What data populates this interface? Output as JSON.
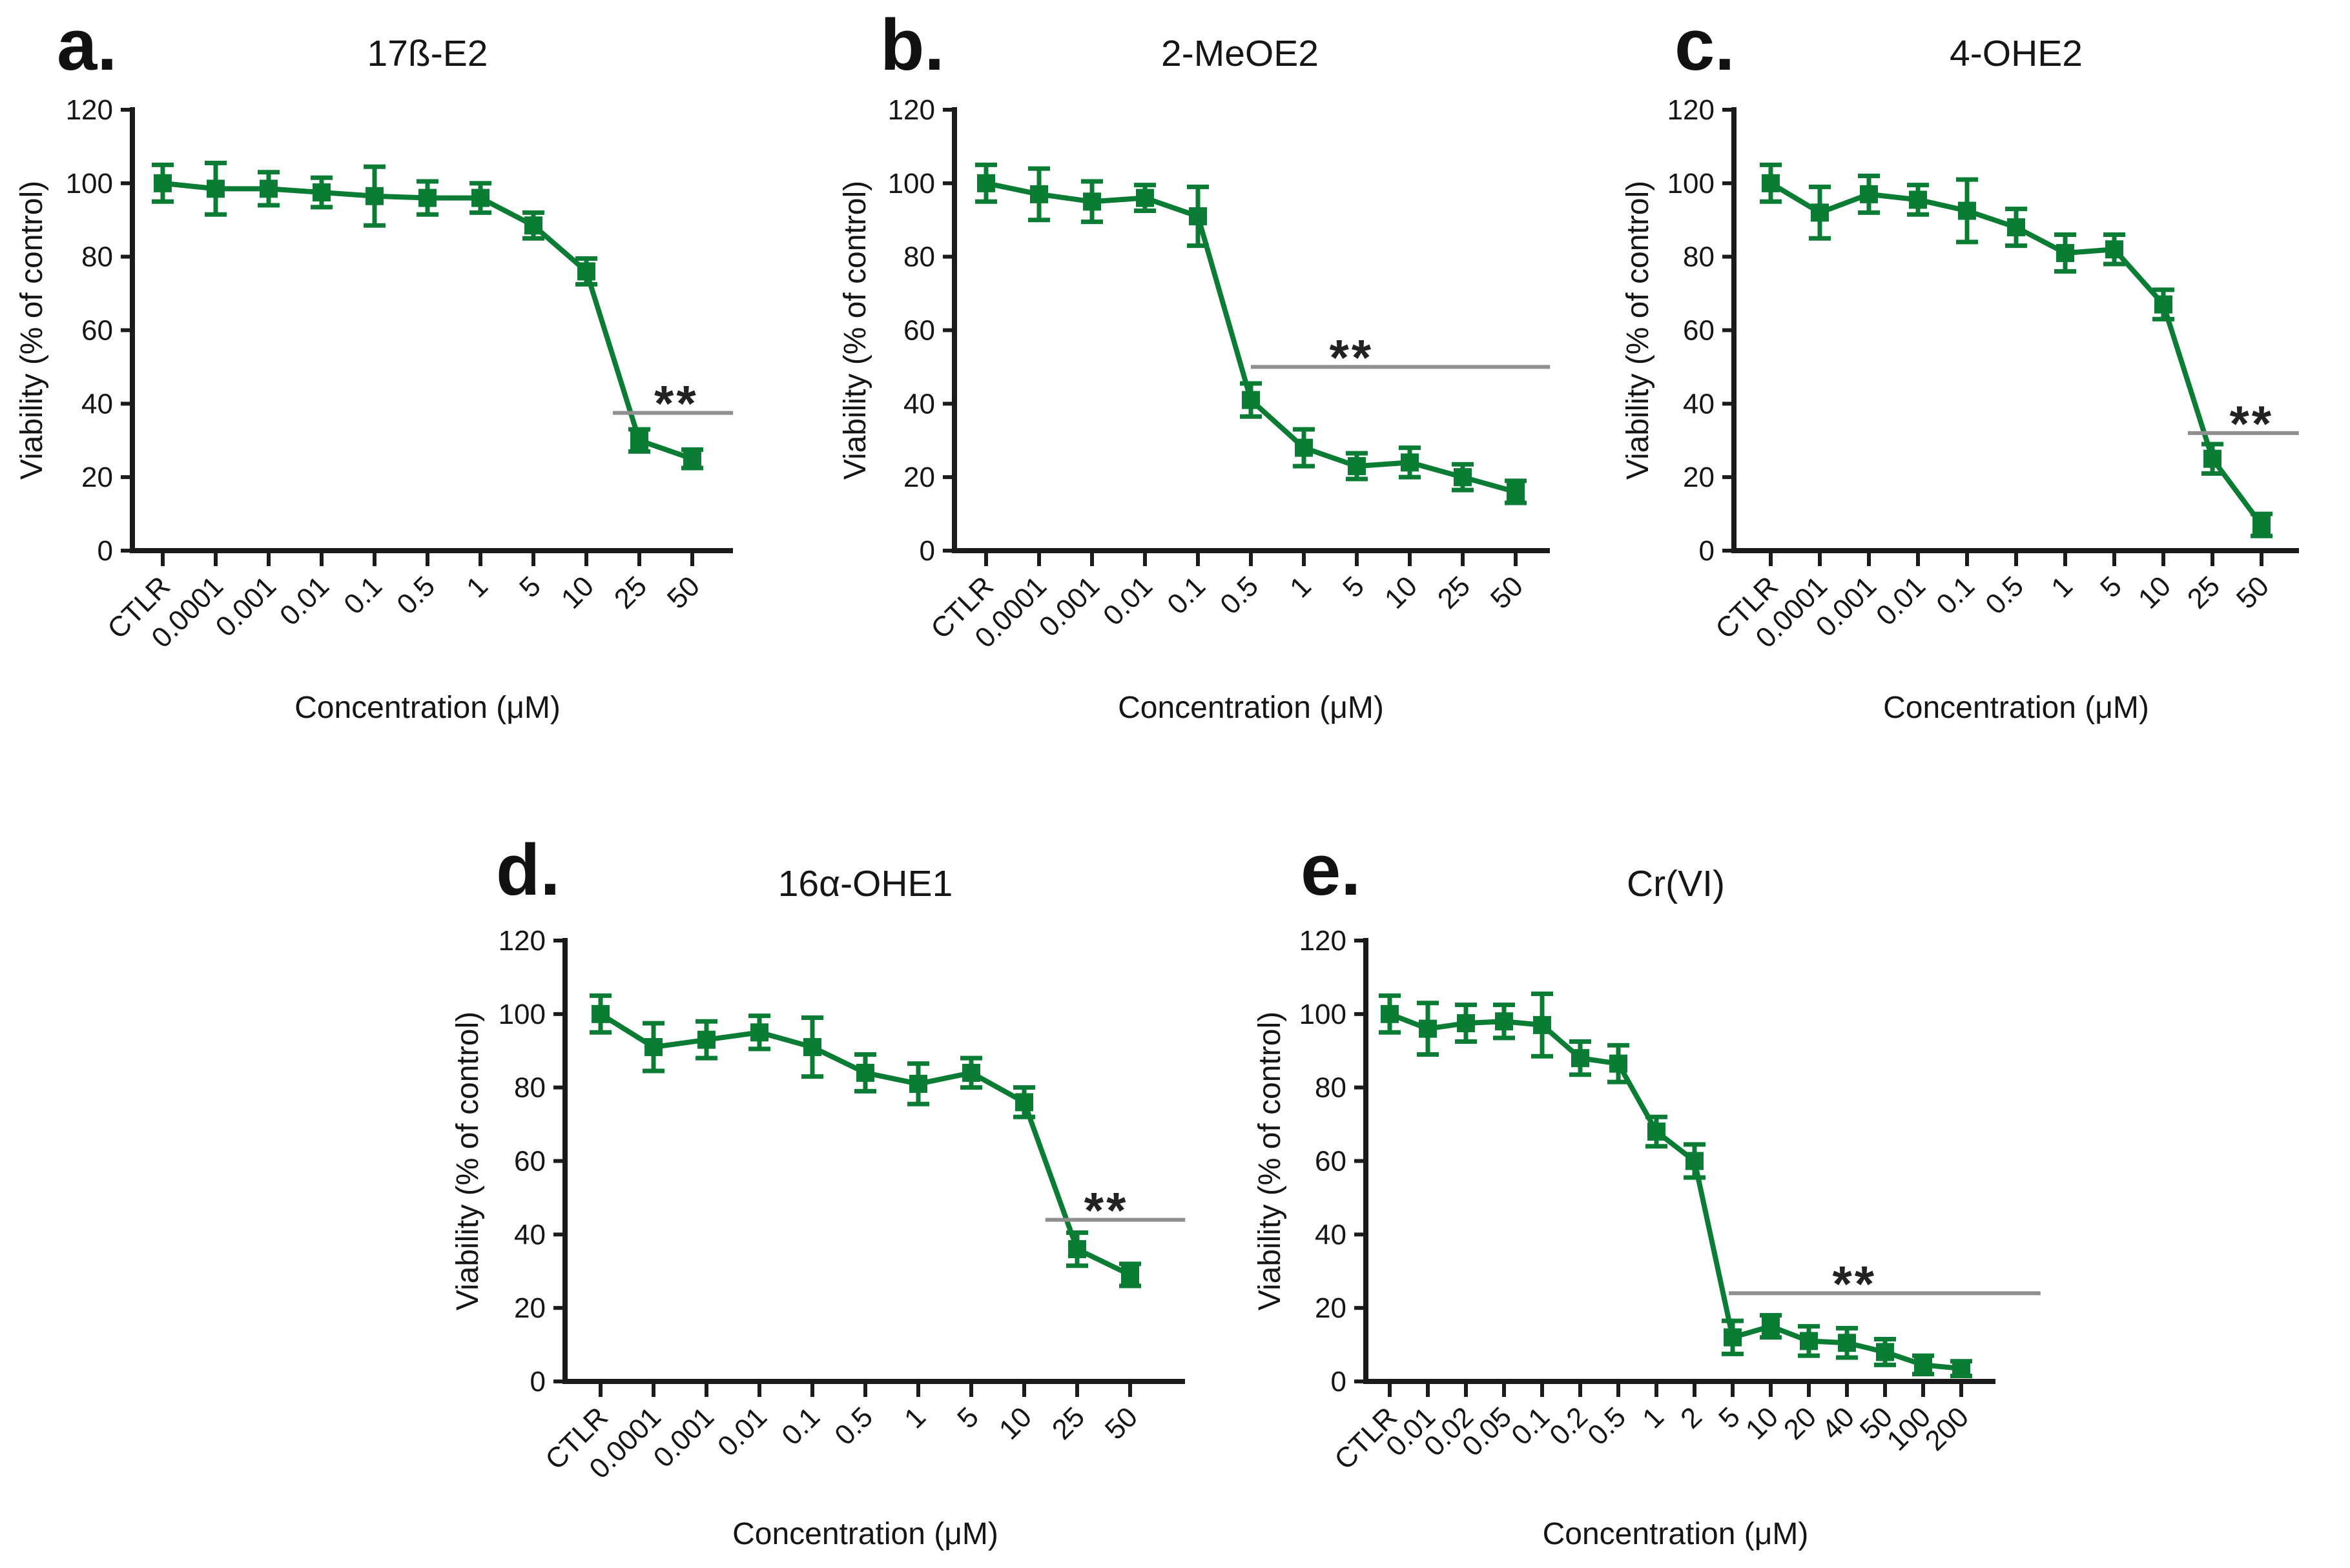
{
  "figure": {
    "background": "#ffffff",
    "series_color": "#0b7c33",
    "sig_line_color": "#8f8f8f",
    "axis_color": "#1b1b1b",
    "text_color": "#151515",
    "star_color": "#222222"
  },
  "chart_data": [
    {
      "panel": "a",
      "panel_letter": "a.",
      "type": "line",
      "title": "17ß-E2",
      "xlabel": "Concentration (μM)",
      "ylabel": "Viability (% of control)",
      "ylim": [
        0,
        120
      ],
      "yticks": [
        0,
        20,
        40,
        60,
        80,
        100,
        120
      ],
      "grid": false,
      "legend": null,
      "marker": "square",
      "categories": [
        "CTLR",
        "0.0001",
        "0.001",
        "0.01",
        "0.1",
        "0.5",
        "1",
        "5",
        "10",
        "25",
        "50"
      ],
      "values": [
        100,
        98.5,
        98.5,
        97.5,
        96.5,
        96,
        96,
        88.5,
        76,
        30,
        25
      ],
      "errors": [
        5,
        7,
        4.5,
        4,
        8,
        4.5,
        4,
        3.5,
        3.5,
        3,
        2.5
      ],
      "significance": {
        "label": "**",
        "y": 37.5,
        "from_index": 8.5,
        "to_index": 10.77,
        "star_index": 9.7
      }
    },
    {
      "panel": "b",
      "panel_letter": "b.",
      "type": "line",
      "title": "2-MeOE2",
      "xlabel": "Concentration (μM)",
      "ylabel": "Viability (% of control)",
      "ylim": [
        0,
        120
      ],
      "yticks": [
        0,
        20,
        40,
        60,
        80,
        100,
        120
      ],
      "grid": false,
      "legend": null,
      "marker": "square",
      "categories": [
        "CTLR",
        "0.0001",
        "0.001",
        "0.01",
        "0.1",
        "0.5",
        "1",
        "5",
        "10",
        "25",
        "50"
      ],
      "values": [
        100,
        97,
        95,
        96,
        91,
        41,
        28,
        23,
        24,
        20,
        16
      ],
      "errors": [
        5,
        7,
        5.5,
        3.5,
        8,
        4.5,
        5,
        3.5,
        4,
        3.5,
        3
      ],
      "significance": {
        "label": "**",
        "y": 50,
        "from_index": 5.0,
        "to_index": 10.65,
        "star_index": 6.9
      }
    },
    {
      "panel": "c",
      "panel_letter": "c.",
      "type": "line",
      "title": "4-OHE2",
      "xlabel": "Concentration (μM)",
      "ylabel": "Viability (% of control)",
      "ylim": [
        0,
        120
      ],
      "yticks": [
        0,
        20,
        40,
        60,
        80,
        100,
        120
      ],
      "grid": false,
      "legend": null,
      "marker": "square",
      "categories": [
        "CTLR",
        "0.0001",
        "0.001",
        "0.01",
        "0.1",
        "0.5",
        "1",
        "5",
        "10",
        "25",
        "50"
      ],
      "values": [
        100,
        92,
        97,
        95.5,
        92.5,
        88,
        81,
        82,
        67,
        25,
        7
      ],
      "errors": [
        5,
        7,
        5,
        4,
        8.5,
        5,
        5,
        4,
        4,
        4,
        3
      ],
      "significance": {
        "label": "**",
        "y": 32,
        "from_index": 8.5,
        "to_index": 10.76,
        "star_index": 9.8
      }
    },
    {
      "panel": "d",
      "panel_letter": "d.",
      "type": "line",
      "title": "16α-OHE1",
      "xlabel": "Concentration (μM)",
      "ylabel": "Viability (% of control)",
      "ylim": [
        0,
        120
      ],
      "yticks": [
        0,
        20,
        40,
        60,
        80,
        100,
        120
      ],
      "grid": false,
      "legend": null,
      "marker": "square",
      "categories": [
        "CTLR",
        "0.0001",
        "0.001",
        "0.01",
        "0.1",
        "0.5",
        "1",
        "5",
        "10",
        "25",
        "50"
      ],
      "values": [
        100,
        91,
        93,
        95,
        91,
        84,
        81,
        84,
        76,
        36,
        29
      ],
      "errors": [
        5,
        6.5,
        5,
        4.5,
        8,
        5,
        5.5,
        4,
        4,
        4.5,
        3
      ],
      "significance": {
        "label": "**",
        "y": 44,
        "from_index": 8.4,
        "to_index": 11.04,
        "star_index": 9.55
      }
    },
    {
      "panel": "e",
      "panel_letter": "e.",
      "type": "line",
      "title": "Cr(VI)",
      "xlabel": "Concentration (μM)",
      "ylabel": "Viability (% of control)",
      "ylim": [
        0,
        120
      ],
      "yticks": [
        0,
        20,
        40,
        60,
        80,
        100,
        120
      ],
      "grid": false,
      "legend": null,
      "marker": "square",
      "categories": [
        "CTLR",
        "0.01",
        "0.02",
        "0.05",
        "0.1",
        "0.2",
        "0.5",
        "1",
        "2",
        "5",
        "10",
        "20",
        "40",
        "50",
        "100",
        "200"
      ],
      "values": [
        100,
        96,
        97.5,
        98,
        97,
        88,
        86.5,
        68,
        60,
        12,
        15,
        11,
        10.5,
        8,
        4.5,
        3.5
      ],
      "errors": [
        5,
        7,
        5,
        4.5,
        8.5,
        4.5,
        5,
        4,
        4.5,
        4.5,
        3,
        4,
        4,
        3.5,
        2.5,
        2
      ],
      "significance": {
        "label": "**",
        "y": 24,
        "from_index": 8.9,
        "to_index": 17.08,
        "star_index": 12.2
      }
    }
  ]
}
